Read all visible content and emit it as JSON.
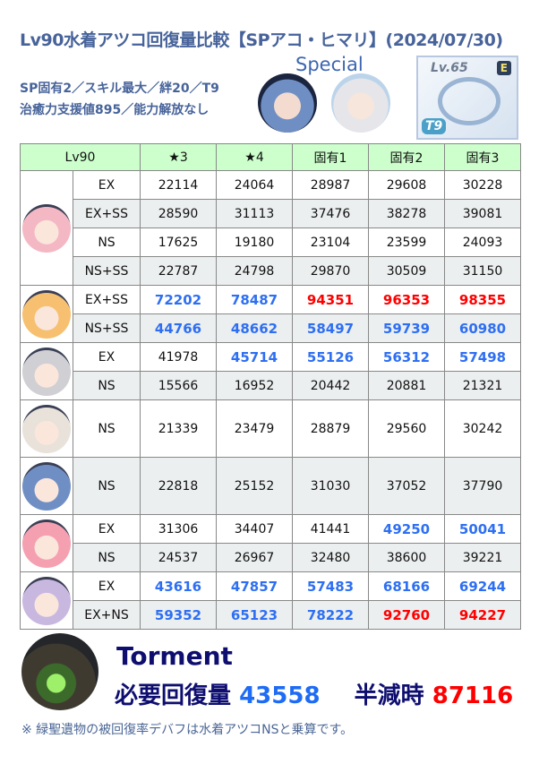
{
  "title": "Lv90水着アツコ回復量比較【SPアコ・ヒマリ】(2024/07/30)",
  "conditions": [
    "SP固有2／スキル最大／絆20／T9",
    "治癒力支援値895／能力解放なし"
  ],
  "special_label": "Special",
  "equipment": {
    "level": "Lv.65",
    "grade": "E",
    "tier": "T9"
  },
  "colors": {
    "blue": "#2e6ff2",
    "red": "#ff0000",
    "header_bg": "#ccffcc"
  },
  "table": {
    "headers": [
      "Lv90",
      "★3",
      "★4",
      "固有1",
      "固有2",
      "固有3"
    ],
    "groups": [
      {
        "avatar": "character-1",
        "color": "#f4b8c4",
        "rows": [
          {
            "type": "EX",
            "values": [
              "22114",
              "24064",
              "28987",
              "29608",
              "30228"
            ],
            "styles": [
              "n",
              "n",
              "n",
              "n",
              "n"
            ]
          },
          {
            "type": "EX+SS",
            "values": [
              "28590",
              "31113",
              "37476",
              "38278",
              "39081"
            ],
            "styles": [
              "n",
              "n",
              "n",
              "n",
              "n"
            ]
          },
          {
            "type": "NS",
            "values": [
              "17625",
              "19180",
              "23104",
              "23599",
              "24093"
            ],
            "styles": [
              "n",
              "n",
              "n",
              "n",
              "n"
            ]
          },
          {
            "type": "NS+SS",
            "values": [
              "22787",
              "24798",
              "29870",
              "30509",
              "31150"
            ],
            "styles": [
              "n",
              "n",
              "n",
              "n",
              "n"
            ]
          }
        ]
      },
      {
        "avatar": "character-2",
        "color": "#f6c070",
        "rows": [
          {
            "type": "EX+SS",
            "values": [
              "72202",
              "78487",
              "94351",
              "96353",
              "98355"
            ],
            "styles": [
              "b",
              "b",
              "r",
              "r",
              "r"
            ]
          },
          {
            "type": "NS+SS",
            "values": [
              "44766",
              "48662",
              "58497",
              "59739",
              "60980"
            ],
            "styles": [
              "b",
              "b",
              "b",
              "b",
              "b"
            ]
          }
        ]
      },
      {
        "avatar": "character-3",
        "color": "#cfcfd4",
        "rows": [
          {
            "type": "EX",
            "values": [
              "41978",
              "45714",
              "55126",
              "56312",
              "57498"
            ],
            "styles": [
              "n",
              "b",
              "b",
              "b",
              "b"
            ]
          },
          {
            "type": "NS",
            "values": [
              "15566",
              "16952",
              "20442",
              "20881",
              "21321"
            ],
            "styles": [
              "n",
              "n",
              "n",
              "n",
              "n"
            ]
          }
        ]
      },
      {
        "avatar": "character-4",
        "color": "#e8e2da",
        "tall": true,
        "rows": [
          {
            "type": "NS",
            "values": [
              "21339",
              "23479",
              "28879",
              "29560",
              "30242"
            ],
            "styles": [
              "n",
              "n",
              "n",
              "n",
              "n"
            ]
          }
        ]
      },
      {
        "avatar": "character-5",
        "color": "#6f8fc4",
        "tall": true,
        "rows": [
          {
            "type": "NS",
            "values": [
              "22818",
              "25152",
              "31030",
              "37052",
              "37790"
            ],
            "styles": [
              "n",
              "n",
              "n",
              "n",
              "n"
            ]
          }
        ]
      },
      {
        "avatar": "character-6",
        "color": "#f4a0b0",
        "rows": [
          {
            "type": "EX",
            "values": [
              "31306",
              "34407",
              "41441",
              "49250",
              "50041"
            ],
            "styles": [
              "n",
              "n",
              "n",
              "b",
              "b"
            ]
          },
          {
            "type": "NS",
            "values": [
              "24537",
              "26967",
              "32480",
              "38600",
              "39221"
            ],
            "styles": [
              "n",
              "n",
              "n",
              "n",
              "n"
            ]
          }
        ]
      },
      {
        "avatar": "character-7",
        "color": "#c8b8e0",
        "rows": [
          {
            "type": "EX",
            "values": [
              "43616",
              "47857",
              "57483",
              "68166",
              "69244"
            ],
            "styles": [
              "b",
              "b",
              "b",
              "b",
              "b"
            ]
          },
          {
            "type": "EX+NS",
            "values": [
              "59352",
              "65123",
              "78222",
              "92760",
              "94227"
            ],
            "styles": [
              "b",
              "b",
              "b",
              "r",
              "r"
            ]
          }
        ]
      }
    ]
  },
  "boss": {
    "name": "Torment",
    "required_label": "必要回復量",
    "required_value": "43558",
    "halved_label": "半減時",
    "halved_value": "87116"
  },
  "note": "※ 緑聖遺物の被回復率デバフは水着アツコNSと乗算です。"
}
